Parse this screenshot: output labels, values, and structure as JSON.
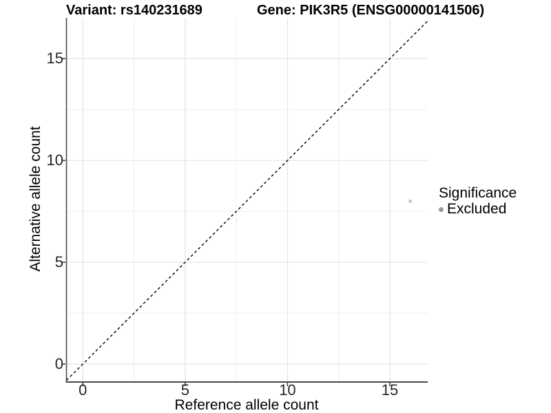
{
  "chart_data": {
    "type": "scatter",
    "titles": {
      "left": "Variant: rs140231689",
      "right": "Gene: PIK3R5 (ENSG00000141506)"
    },
    "xlabel": "Reference allele count",
    "ylabel": "Alternative allele count",
    "x_ticks": [
      0,
      5,
      10,
      15
    ],
    "y_ticks": [
      0,
      5,
      10,
      15
    ],
    "xlim": [
      -0.8,
      16.85
    ],
    "ylim": [
      -0.85,
      17.0
    ],
    "grid_values": [
      0,
      2.5,
      5,
      7.5,
      10,
      12.5,
      15
    ],
    "grid": "major+minor",
    "identity_line": {
      "slope": 1,
      "intercept": 0,
      "style": "dashed"
    },
    "points": [
      {
        "x": 16,
        "y": 8,
        "significance": "Excluded"
      }
    ],
    "legend": {
      "title": "Significance",
      "position": "right",
      "items": [
        {
          "label": "Excluded"
        }
      ]
    }
  },
  "colors": {
    "background": "#ffffff",
    "grid_major": "#e3e3e3",
    "grid_minor": "#eeeeee",
    "axis_line": "#474747",
    "tick_mark": "#333333",
    "tick_label": "#262626",
    "text": "#000000",
    "point_fill": "#c2c2c2",
    "legend_dot": "#9a9a9a",
    "identity_line": "#000000"
  }
}
